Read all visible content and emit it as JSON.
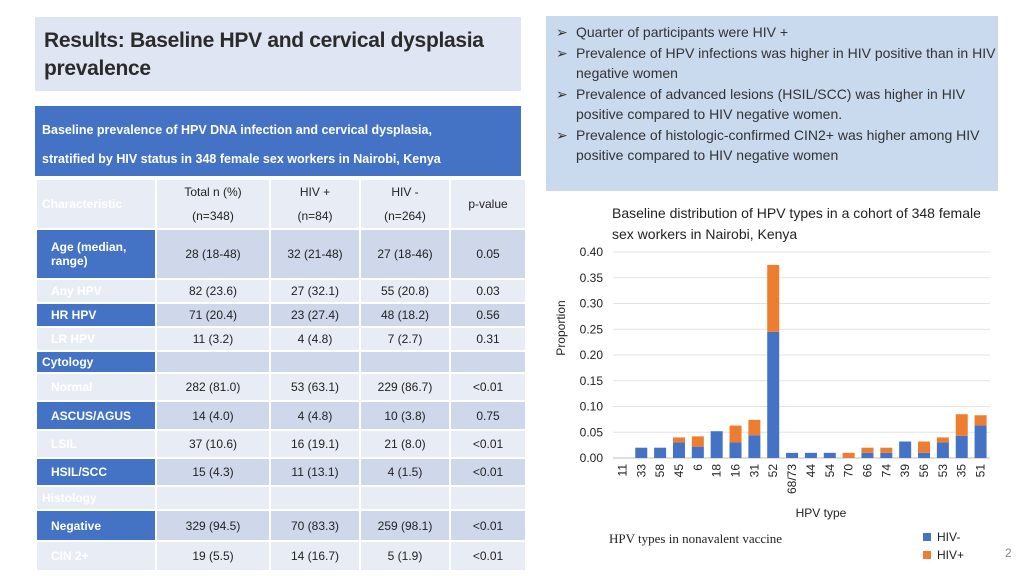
{
  "title": "Results: Baseline HPV and cervical dysplasia prevalence",
  "table_caption": {
    "line1": "Baseline prevalence of HPV DNA infection and cervical dysplasia,",
    "line2": "stratified by HIV status in 348 female sex workers in Nairobi, Kenya"
  },
  "table": {
    "header": {
      "characteristic": "Characteristic",
      "total": "Total n (%)",
      "total_n": "(n=348)",
      "hiv_pos": "HIV +",
      "hiv_pos_n": "(n=84)",
      "hiv_neg": "HIV -",
      "hiv_neg_n": "(n=264)",
      "pvalue": "p-value"
    },
    "rows": [
      {
        "label": "Age (median, range)",
        "total": "28 (18-48)",
        "hiv_pos": "32 (21-48)",
        "hiv_neg": "27 (18-46)",
        "p": "0.05"
      },
      {
        "label": "Any HPV",
        "total": "82 (23.6)",
        "hiv_pos": "27 (32.1)",
        "hiv_neg": "55 (20.8)",
        "p": "0.03"
      },
      {
        "label": "HR HPV",
        "total": "71 (20.4)",
        "hiv_pos": "23 (27.4)",
        "hiv_neg": "48 (18.2)",
        "p": "0.56"
      },
      {
        "label": "LR HPV",
        "total": "11 (3.2)",
        "hiv_pos": "4 (4.8)",
        "hiv_neg": "7 (2.7)",
        "p": "0.31"
      },
      {
        "label": "Cytology",
        "section": true
      },
      {
        "label": "Normal",
        "total": "282 (81.0)",
        "hiv_pos": "53 (63.1)",
        "hiv_neg": "229 (86.7)",
        "p": "<0.01"
      },
      {
        "label": "ASCUS/AGUS",
        "total": "14 (4.0)",
        "hiv_pos": "4 (4.8)",
        "hiv_neg": "10 (3.8)",
        "p": "0.75"
      },
      {
        "label": "LSIL",
        "total": "37 (10.6)",
        "hiv_pos": "16 (19.1)",
        "hiv_neg": "21 (8.0)",
        "p": "<0.01"
      },
      {
        "label": "HSIL/SCC",
        "total": "15 (4.3)",
        "hiv_pos": "11 (13.1)",
        "hiv_neg": "4 (1.5)",
        "p": "<0.01"
      },
      {
        "label": "Histology",
        "section": true
      },
      {
        "label": "Negative",
        "total": "329 (94.5)",
        "hiv_pos": "70 (83.3)",
        "hiv_neg": "259 (98.1)",
        "p": "<0.01"
      },
      {
        "label": "CIN 2+",
        "total": "19 (5.5)",
        "hiv_pos": "14 (16.7)",
        "hiv_neg": "5 (1.9)",
        "p": "<0.01"
      }
    ]
  },
  "bullets": [
    "Quarter of participants were HIV +",
    "Prevalence of HPV infections was higher in HIV positive than in HIV negative women",
    "Prevalence of advanced lesions (HSIL/SCC) was higher in HIV positive compared to HIV negative women.",
    "Prevalence of histologic-confirmed CIN2+ was higher among HIV positive compared to HIV negative women"
  ],
  "chart_note": "HPV types in nonavalent vaccine",
  "page_number": "2",
  "colors": {
    "hiv_neg": "#4472c4",
    "hiv_pos": "#ed7d31",
    "header_blue": "#4472c4"
  },
  "chart_data": {
    "type": "bar",
    "stacked": true,
    "title": "Baseline distribution of HPV types in a cohort of 348 female sex workers in Nairobi, Kenya",
    "xlabel": "HPV type",
    "ylabel": "Proportion",
    "ylim": [
      0,
      0.4
    ],
    "yticks": [
      "0.00",
      "0.05",
      "0.10",
      "0.15",
      "0.20",
      "0.25",
      "0.30",
      "0.35",
      "0.40"
    ],
    "legend_position": "bottom-right",
    "categories": [
      "11",
      "33",
      "58",
      "45",
      "6",
      "18",
      "16",
      "31",
      "52",
      "68/73",
      "44",
      "54",
      "70",
      "66",
      "74",
      "39",
      "56",
      "53",
      "35",
      "51"
    ],
    "series": [
      {
        "name": "HIV-",
        "values": [
          0,
          0.02,
          0.02,
          0.03,
          0.022,
          0.052,
          0.03,
          0.044,
          0.245,
          0.01,
          0.01,
          0.01,
          0,
          0.01,
          0.01,
          0.032,
          0.01,
          0.03,
          0.043,
          0.063
        ]
      },
      {
        "name": "HIV+",
        "values": [
          0,
          0,
          0,
          0.01,
          0.02,
          0,
          0.033,
          0.03,
          0.13,
          0,
          0,
          0,
          0.01,
          0.01,
          0.01,
          0,
          0.022,
          0.01,
          0.042,
          0.02
        ]
      }
    ]
  }
}
